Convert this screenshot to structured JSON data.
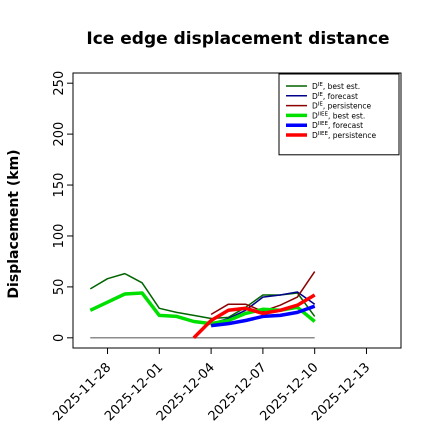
{
  "chart_data": {
    "type": "line",
    "title": "Ice edge displacement distance",
    "xlabel": "",
    "ylabel": "Displacement (km)",
    "x_ticks": [
      "2025-11-28",
      "2025-12-01",
      "2025-12-04",
      "2025-12-07",
      "2025-12-10",
      "2025-12-13"
    ],
    "highlight_tick": "2025-12-04",
    "highlight_color": "#228B22",
    "y_ticks": [
      0,
      50,
      100,
      150,
      200,
      250
    ],
    "xlim": [
      "2025-11-26",
      "2025-12-15"
    ],
    "ylim": [
      -10,
      260
    ],
    "legend_position": "top-right",
    "series": [
      {
        "name": "D^IE, best est.",
        "color": "#006400",
        "width": 1.5,
        "points": [
          [
            "2025-11-27",
            48
          ],
          [
            "2025-11-28",
            58
          ],
          [
            "2025-11-29",
            63
          ],
          [
            "2025-11-30",
            54
          ],
          [
            "2025-12-01",
            29
          ],
          [
            "2025-12-02",
            25
          ],
          [
            "2025-12-03",
            22
          ],
          [
            "2025-12-04",
            19
          ],
          [
            "2025-12-05",
            20
          ],
          [
            "2025-12-06",
            30
          ],
          [
            "2025-12-07",
            42
          ],
          [
            "2025-12-08",
            42
          ],
          [
            "2025-12-09",
            44
          ],
          [
            "2025-12-10",
            21
          ]
        ]
      },
      {
        "name": "D^IE, forecast",
        "color": "#00008B",
        "width": 1.5,
        "points": [
          [
            "2025-12-04",
            14
          ],
          [
            "2025-12-05",
            19
          ],
          [
            "2025-12-06",
            27
          ],
          [
            "2025-12-07",
            40
          ],
          [
            "2025-12-08",
            42
          ],
          [
            "2025-12-09",
            45
          ],
          [
            "2025-12-10",
            33
          ]
        ]
      },
      {
        "name": "D^IE, persistence",
        "color": "#8B0000",
        "width": 1.5,
        "points": [
          [
            "2025-12-04",
            23
          ],
          [
            "2025-12-05",
            33
          ],
          [
            "2025-12-06",
            33
          ],
          [
            "2025-12-07",
            26
          ],
          [
            "2025-12-08",
            32
          ],
          [
            "2025-12-09",
            40
          ],
          [
            "2025-12-10",
            65
          ]
        ]
      },
      {
        "name": "D^IIEE, best est.",
        "color": "#00E000",
        "width": 3.5,
        "points": [
          [
            "2025-11-27",
            27
          ],
          [
            "2025-11-28",
            35
          ],
          [
            "2025-11-29",
            43
          ],
          [
            "2025-11-30",
            44
          ],
          [
            "2025-12-01",
            22
          ],
          [
            "2025-12-02",
            21
          ],
          [
            "2025-12-03",
            16
          ],
          [
            "2025-12-04",
            14
          ],
          [
            "2025-12-05",
            17
          ],
          [
            "2025-12-06",
            24
          ],
          [
            "2025-12-07",
            28
          ],
          [
            "2025-12-08",
            27
          ],
          [
            "2025-12-09",
            30
          ],
          [
            "2025-12-10",
            16
          ]
        ]
      },
      {
        "name": "D^IIEE, forecast",
        "color": "#0000FF",
        "width": 3.5,
        "points": [
          [
            "2025-12-04",
            12
          ],
          [
            "2025-12-05",
            14
          ],
          [
            "2025-12-06",
            17
          ],
          [
            "2025-12-07",
            21
          ],
          [
            "2025-12-08",
            22
          ],
          [
            "2025-12-09",
            25
          ],
          [
            "2025-12-10",
            31
          ]
        ]
      },
      {
        "name": "D^IIEE, persistence",
        "color": "#FF0000",
        "width": 3.5,
        "points": [
          [
            "2025-12-03",
            0
          ],
          [
            "2025-12-04",
            17
          ],
          [
            "2025-12-05",
            27
          ],
          [
            "2025-12-06",
            29
          ],
          [
            "2025-12-07",
            24
          ],
          [
            "2025-12-08",
            27
          ],
          [
            "2025-12-09",
            32
          ],
          [
            "2025-12-10",
            42
          ]
        ]
      }
    ],
    "baseline": {
      "value": 0,
      "color": "#666666",
      "from": "2025-11-27",
      "to": "2025-12-10"
    }
  }
}
